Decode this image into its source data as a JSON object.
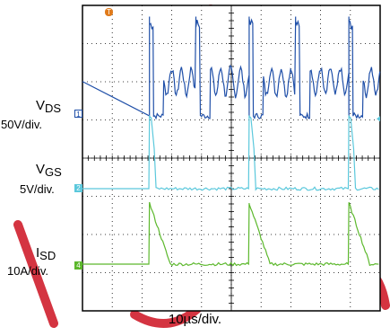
{
  "chart_data": {
    "type": "line",
    "title": "",
    "xlabel": "10µs/div.",
    "x_unit": "µs",
    "x_per_div": 10,
    "divisions": {
      "x": 10,
      "y": 8
    },
    "grid": true,
    "period_us": 33.5,
    "trigger_marker": "T",
    "series": [
      {
        "name_main": "V",
        "name_sub": "DS",
        "scale_label": "50V/div.",
        "channel": "1",
        "color": "#1f4fa8",
        "volts_per_div": 50,
        "baseline_div": 0,
        "peak_div": 2.6,
        "on_level_div": 2.4,
        "ring_level_div": 0.9,
        "ring_amplitude_div": 0.35
      },
      {
        "name_main": "V",
        "name_sub": "GS",
        "scale_label": "5V/div.",
        "channel": "2",
        "color": "#5bc8dc",
        "volts_per_div": 5,
        "baseline_div": 0,
        "high_div": 1.9
      },
      {
        "name_main": "I",
        "name_sub": "SD",
        "scale_label": "10A/div.",
        "channel": "4",
        "color": "#5cb82c",
        "amps_per_div": 10,
        "baseline_div": 0,
        "peak_div": 1.6
      }
    ],
    "cycles_us": [
      0,
      33.5,
      67,
      100.5
    ]
  },
  "colors": {
    "screen_bg": "#ffffff",
    "grid": "#000000",
    "trigger": "#e07a1a",
    "watermark": "#cc1020"
  },
  "watermark_letters": [
    "O",
    "U",
    "D",
    "C",
    "T",
    "D",
    "S"
  ]
}
